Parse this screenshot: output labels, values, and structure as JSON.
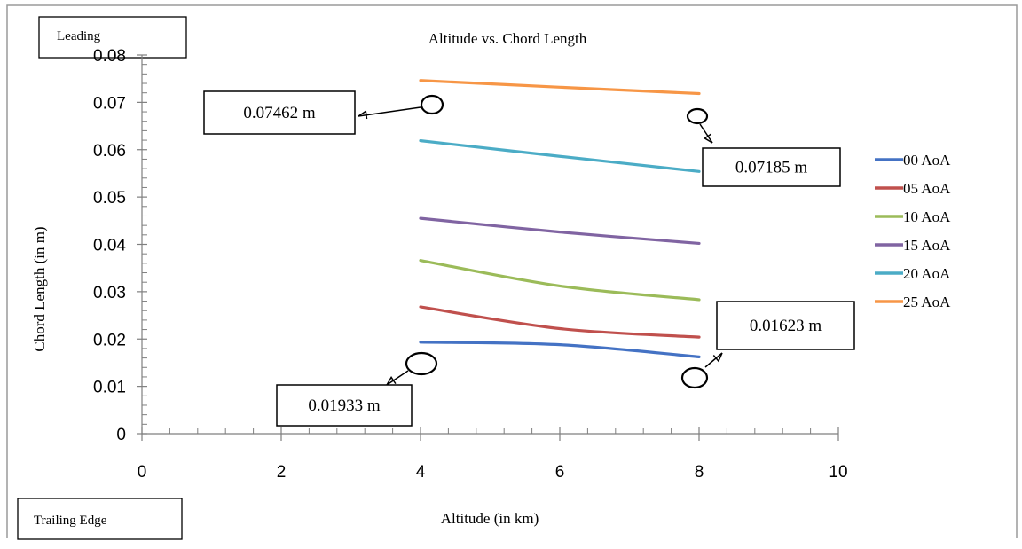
{
  "boxes": {
    "top_left": "Leading",
    "bottom_left": "Trailing Edge"
  },
  "chart_data": {
    "type": "line",
    "title": "Altitude vs. Chord Length",
    "xlabel": "Altitude (in km)",
    "ylabel": "Chord Length (in m)",
    "xlim": [
      0,
      10
    ],
    "ylim": [
      0,
      0.08
    ],
    "x_ticks": [
      "0",
      "2",
      "4",
      "6",
      "8",
      "10"
    ],
    "y_ticks": [
      "0",
      "0.01",
      "0.02",
      "0.03",
      "0.04",
      "0.05",
      "0.06",
      "0.07",
      "0.08"
    ],
    "legend_position": "right",
    "series": [
      {
        "name": "00 AoA",
        "color": "#4472C4",
        "x": [
          4,
          6,
          8
        ],
        "y": [
          0.01933,
          0.0188,
          0.01623
        ]
      },
      {
        "name": "05 AoA",
        "color": "#C0504D",
        "x": [
          4,
          6,
          8
        ],
        "y": [
          0.0268,
          0.0222,
          0.0204
        ]
      },
      {
        "name": "10 AoA",
        "color": "#9BBB59",
        "x": [
          4,
          6,
          8
        ],
        "y": [
          0.0366,
          0.0312,
          0.0283
        ]
      },
      {
        "name": "15 AoA",
        "color": "#8064A2",
        "x": [
          4,
          6,
          8
        ],
        "y": [
          0.0455,
          0.0426,
          0.0402
        ]
      },
      {
        "name": "20 AoA",
        "color": "#4BACC6",
        "x": [
          4,
          6,
          8
        ],
        "y": [
          0.0619,
          0.0586,
          0.0554
        ]
      },
      {
        "name": "25 AoA",
        "color": "#F79646",
        "x": [
          4,
          6,
          8
        ],
        "y": [
          0.07462,
          0.0732,
          0.07185
        ]
      }
    ],
    "annotations": [
      {
        "text": "0.07462 m",
        "x": 4,
        "y": 0.07462
      },
      {
        "text": "0.07185 m",
        "x": 8,
        "y": 0.07185
      },
      {
        "text": "0.01933 m",
        "x": 4,
        "y": 0.01933
      },
      {
        "text": "0.01623 m",
        "x": 8,
        "y": 0.01623
      }
    ]
  }
}
